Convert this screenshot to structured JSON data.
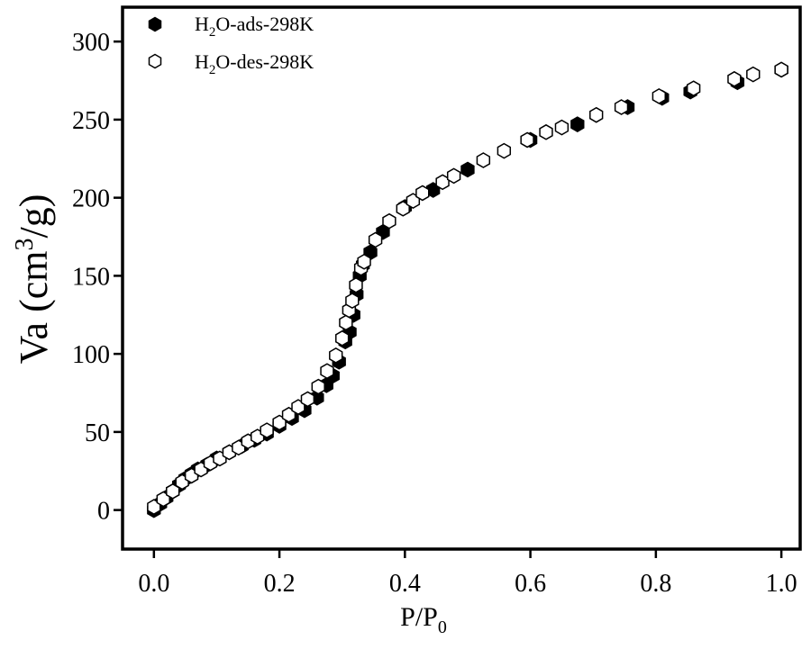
{
  "chart_data": {
    "type": "scatter",
    "xlabel": {
      "main": "P/P",
      "sub": "0"
    },
    "ylabel": {
      "main": "Va (cm",
      "sup": "3",
      "tail": "/g)"
    },
    "xlim": [
      -0.05,
      1.03
    ],
    "ylim": [
      -25,
      322
    ],
    "xticks": [
      0.0,
      0.2,
      0.4,
      0.6,
      0.8,
      1.0
    ],
    "xtick_labels": [
      "0.0",
      "0.2",
      "0.4",
      "0.6",
      "0.8",
      "1.0"
    ],
    "yticks": [
      0,
      50,
      100,
      150,
      200,
      250,
      300
    ],
    "ytick_labels": [
      "0",
      "50",
      "100",
      "150",
      "200",
      "250",
      "300"
    ],
    "grid": false,
    "legend_position": "top-left",
    "series": [
      {
        "name": {
          "pre": "H",
          "sub": "2",
          "post": "O-ads-298K"
        },
        "marker": "filled-hexagon",
        "color": "#000000",
        "x": [
          0.0,
          0.01,
          0.02,
          0.03,
          0.04,
          0.05,
          0.06,
          0.07,
          0.085,
          0.1,
          0.12,
          0.14,
          0.16,
          0.18,
          0.2,
          0.22,
          0.24,
          0.26,
          0.275,
          0.285,
          0.295,
          0.305,
          0.312,
          0.318,
          0.323,
          0.328,
          0.333,
          0.345,
          0.365,
          0.4,
          0.445,
          0.5,
          0.6,
          0.675,
          0.755,
          0.81,
          0.855,
          0.93,
          1.0
        ],
        "y": [
          0,
          4,
          8,
          12,
          16,
          20,
          23,
          26,
          29,
          33,
          37,
          41,
          45,
          49,
          54,
          59,
          64,
          72,
          80,
          86,
          95,
          108,
          114,
          125,
          138,
          150,
          157,
          165,
          178,
          194,
          205,
          218,
          237,
          247,
          258,
          264,
          268,
          274,
          282
        ]
      },
      {
        "name": {
          "pre": "H",
          "sub": "2",
          "post": "O-des-298K"
        },
        "marker": "open-hexagon",
        "color": "#000000",
        "x": [
          0.0,
          0.015,
          0.03,
          0.045,
          0.06,
          0.075,
          0.09,
          0.105,
          0.12,
          0.135,
          0.15,
          0.165,
          0.18,
          0.2,
          0.215,
          0.23,
          0.245,
          0.262,
          0.276,
          0.29,
          0.3,
          0.306,
          0.311,
          0.316,
          0.322,
          0.33,
          0.335,
          0.353,
          0.375,
          0.397,
          0.413,
          0.428,
          0.46,
          0.478,
          0.525,
          0.558,
          0.595,
          0.625,
          0.65,
          0.705,
          0.745,
          0.805,
          0.86,
          0.925,
          0.955,
          1.0
        ],
        "y": [
          2,
          7,
          12,
          18,
          22,
          26,
          30,
          33,
          37,
          40,
          44,
          47,
          51,
          56,
          61,
          66,
          71,
          79,
          89,
          99,
          110,
          120,
          128,
          134,
          144,
          155,
          159,
          173,
          185,
          193,
          198,
          203,
          210,
          214,
          224,
          230,
          237,
          242,
          245,
          253,
          258,
          265,
          270,
          276,
          279,
          282
        ]
      }
    ]
  }
}
